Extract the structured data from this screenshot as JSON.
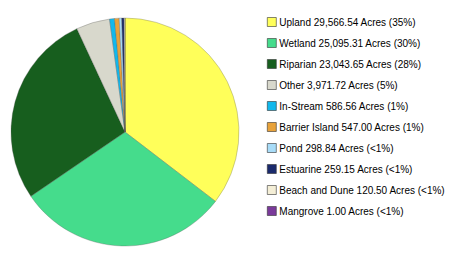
{
  "chart_data": {
    "type": "pie",
    "categories": [
      "Upland 29,566.54 Acres (35%)",
      "Wetland 25,095.31 Acres (30%)",
      "Riparian 23,043.65 Acres (28%)",
      "Other 3,971.72 Acres (5%)",
      "In-Stream 586.56 Acres (1%)",
      "Barrier Island 547.00 Acres (1%)",
      "Pond 298.84 Acres (<1%)",
      "Estuarine 259.15 Acres (<1%)",
      "Beach and Dune 120.50 Acres (<1%)",
      "Mangrove 1.00 Acres (<1%)"
    ],
    "values": [
      29566.54,
      25095.31,
      23043.65,
      3971.72,
      586.56,
      547.0,
      298.84,
      259.15,
      120.5,
      1.0
    ],
    "colors": [
      "#ffff5a",
      "#45dc8c",
      "#175e1e",
      "#d8d8cc",
      "#12b8ec",
      "#e8a23a",
      "#a8dcf8",
      "#1a2a6c",
      "#f4eed6",
      "#7a3a9a"
    ],
    "legend": "right"
  }
}
